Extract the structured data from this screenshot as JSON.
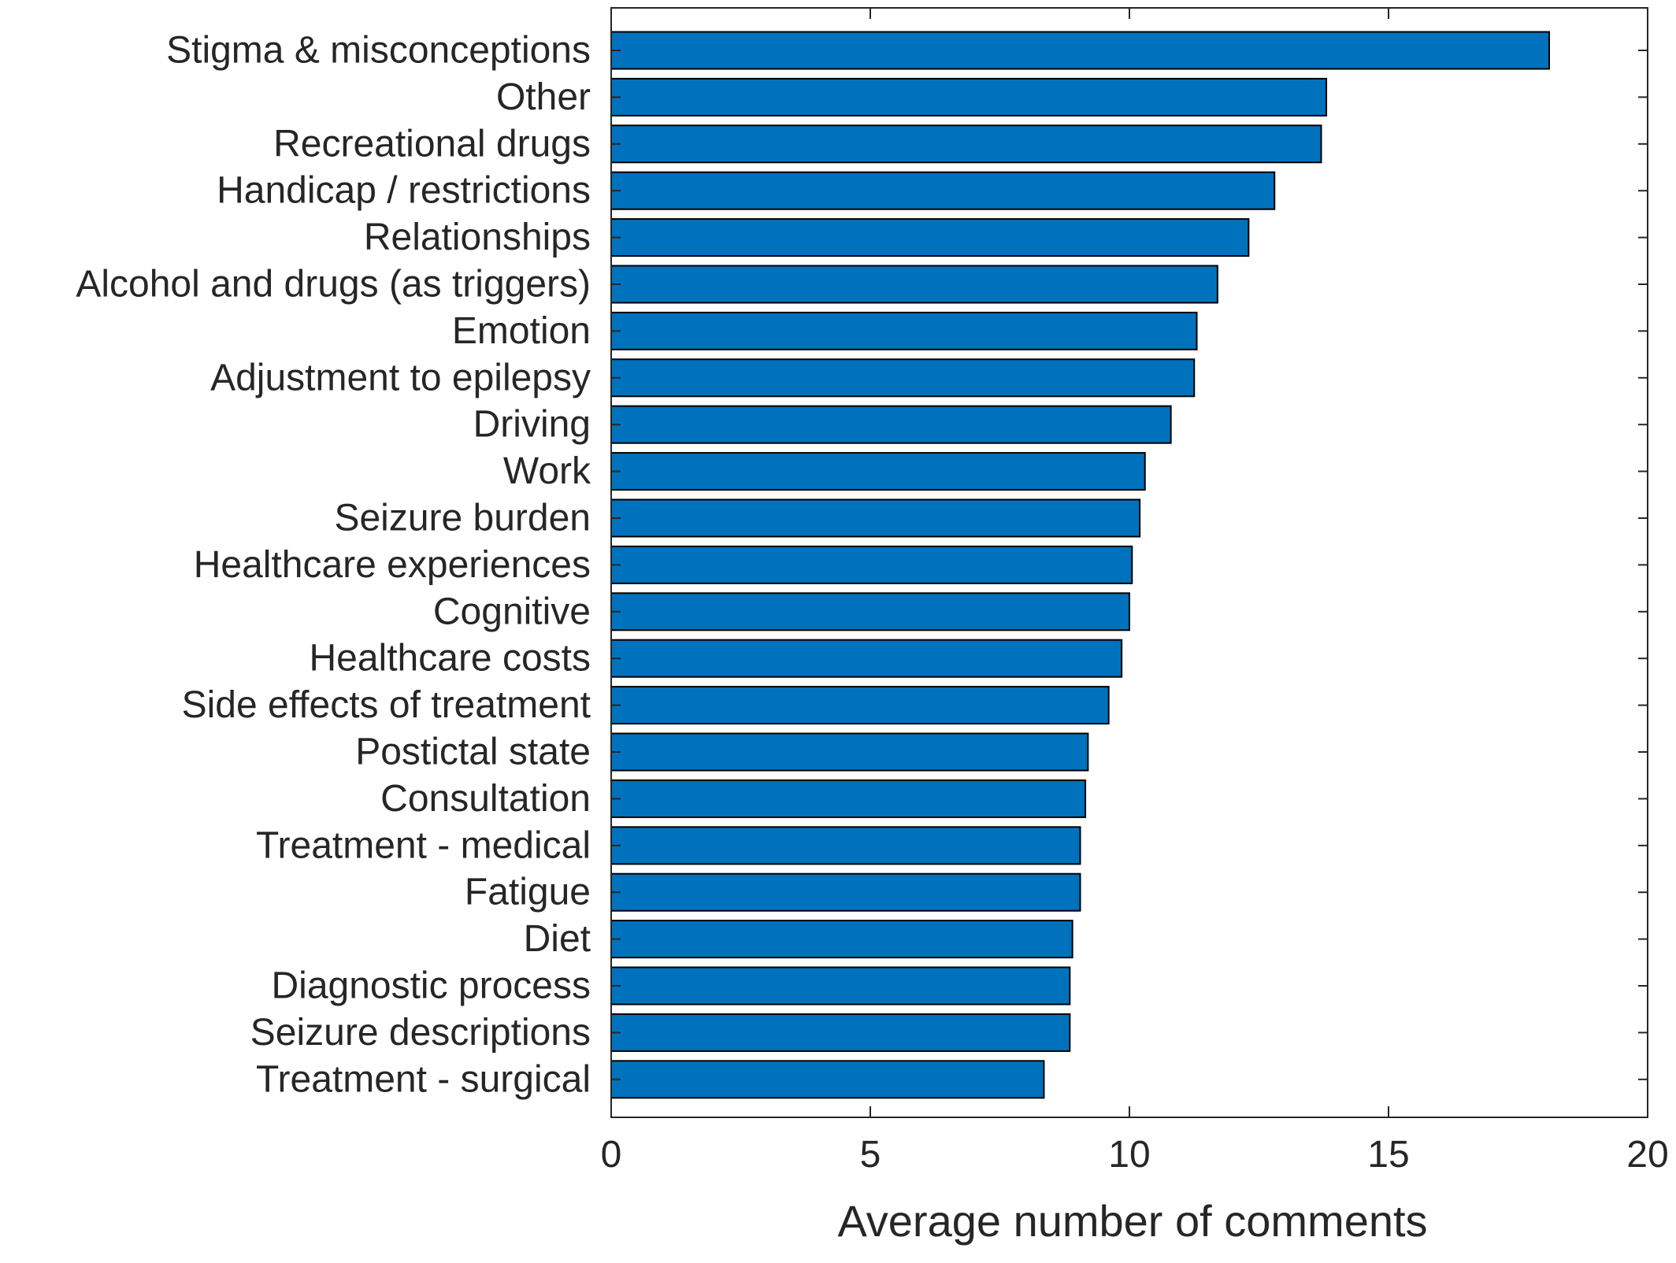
{
  "chart_data": {
    "type": "bar",
    "orientation": "horizontal",
    "categories": [
      "Stigma & misconceptions",
      "Other",
      "Recreational drugs",
      "Handicap / restrictions",
      "Relationships",
      "Alcohol and drugs (as triggers)",
      "Emotion",
      "Adjustment to epilepsy",
      "Driving",
      "Work",
      "Seizure burden",
      "Healthcare experiences",
      "Cognitive",
      "Healthcare costs",
      "Side effects of treatment",
      "Postictal state",
      "Consultation",
      "Treatment - medical",
      "Fatigue",
      "Diet",
      "Diagnostic process",
      "Seizure descriptions",
      "Treatment - surgical"
    ],
    "values": [
      18.1,
      13.8,
      13.7,
      12.8,
      12.3,
      11.7,
      11.3,
      11.25,
      10.8,
      10.3,
      10.2,
      10.05,
      10.0,
      9.85,
      9.6,
      9.2,
      9.15,
      9.05,
      9.05,
      8.9,
      8.85,
      8.85,
      8.35
    ],
    "xlabel": "Average number of comments",
    "ylabel": "",
    "title": "",
    "xlim": [
      0,
      20
    ],
    "xticks": [
      "0",
      "5",
      "10",
      "15",
      "20"
    ],
    "grid": false,
    "legend": "none",
    "bar_color": "#0072BD",
    "bar_edge_color": "#000000"
  }
}
